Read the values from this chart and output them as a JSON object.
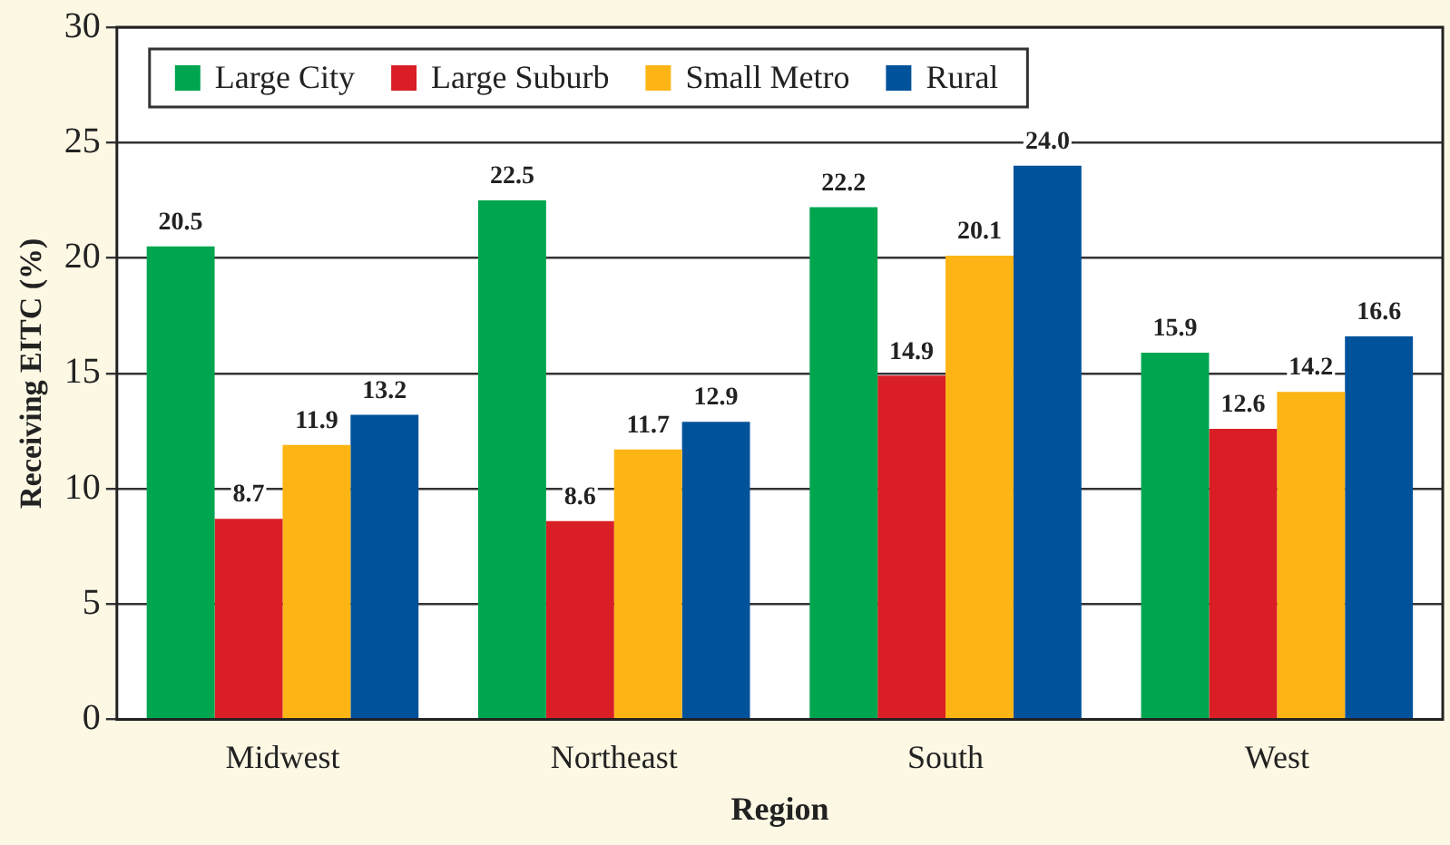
{
  "chart_data": {
    "type": "bar",
    "xlabel": "Region",
    "ylabel": "Receiving EITC (%)",
    "categories": [
      "Midwest",
      "Northeast",
      "South",
      "West"
    ],
    "series": [
      {
        "name": "Large City",
        "color": "#00a550",
        "values": [
          20.5,
          22.5,
          22.2,
          15.9
        ],
        "value_labels": [
          "20.5",
          "22.5",
          "22.2",
          "15.9"
        ]
      },
      {
        "name": "Large Suburb",
        "color": "#d91e25",
        "values": [
          8.7,
          8.6,
          14.9,
          12.6
        ],
        "value_labels": [
          "8.7",
          "8.6",
          "14.9",
          "12.6"
        ]
      },
      {
        "name": "Small Metro",
        "color": "#fdb515",
        "values": [
          11.9,
          11.7,
          20.1,
          14.2
        ],
        "value_labels": [
          "11.9",
          "11.7",
          "20.1",
          "14.2"
        ]
      },
      {
        "name": "Rural",
        "color": "#00529b",
        "values": [
          13.2,
          12.9,
          24.0,
          16.6
        ],
        "value_labels": [
          "13.2",
          "12.9",
          "24.0",
          "16.6"
        ]
      }
    ],
    "ylim": [
      0,
      30
    ],
    "yticks": [
      0,
      5,
      10,
      15,
      20,
      25,
      30
    ],
    "grid": "y",
    "legend": "top left"
  }
}
